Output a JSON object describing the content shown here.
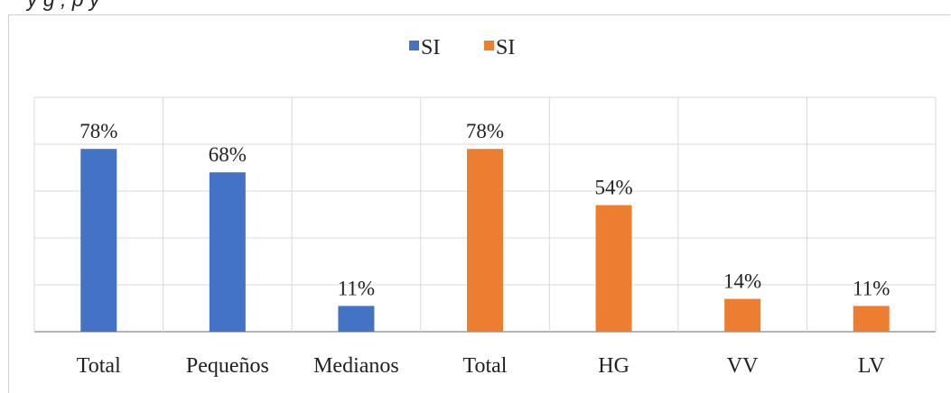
{
  "caption_fragment": "y g     , p     y",
  "chart_data": {
    "type": "bar",
    "categories": [
      "Total",
      "Pequeños",
      "Medianos",
      "Total",
      "HG",
      "VV",
      "LV"
    ],
    "series": [
      {
        "name": "SI",
        "color": "#4472C4",
        "values": [
          78,
          68,
          11,
          null,
          null,
          null,
          null
        ]
      },
      {
        "name": "SI",
        "color": "#ED7D31",
        "values": [
          null,
          null,
          null,
          78,
          54,
          14,
          11
        ]
      }
    ],
    "data_labels": [
      "78%",
      "68%",
      "11%",
      "78%",
      "54%",
      "14%",
      "11%"
    ],
    "ylim": [
      0,
      100
    ],
    "grid": true,
    "legend_position": "top"
  }
}
